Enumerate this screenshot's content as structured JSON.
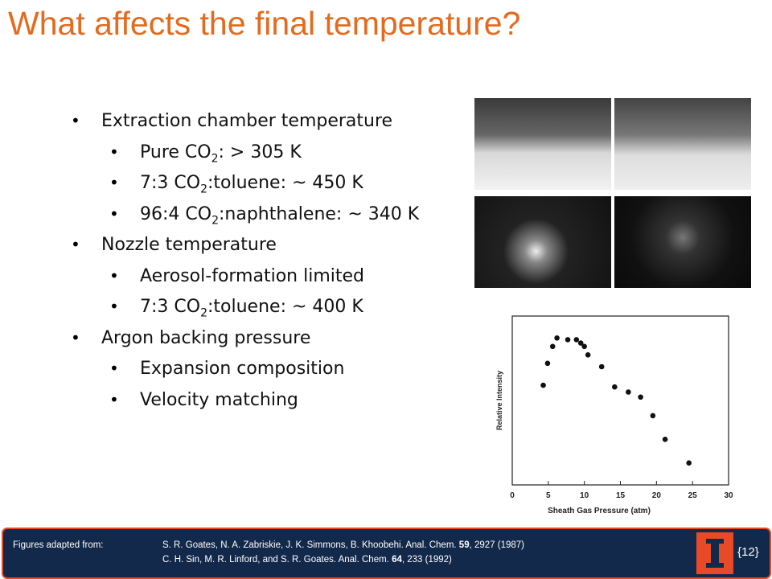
{
  "slide": {
    "title": "What affects the final temperature?",
    "bullets": [
      {
        "text": [
          "Extraction chamber temperature"
        ],
        "items": [
          {
            "text": [
              "Pure CO",
              "2",
              ": > 305 K"
            ]
          },
          {
            "text": [
              "7:3 CO",
              "2",
              ":toluene: ~ 450 K"
            ]
          },
          {
            "text": [
              "96:4 CO",
              "2",
              ":naphthalene: ~ 340 K"
            ]
          }
        ]
      },
      {
        "text": [
          "Nozzle temperature"
        ],
        "items": [
          {
            "text": [
              "Aerosol-formation limited"
            ]
          },
          {
            "text": [
              "7:3 CO",
              "2",
              ":toluene: ~ 400 K"
            ]
          }
        ]
      },
      {
        "text": [
          "Argon backing pressure"
        ],
        "items": [
          {
            "text": [
              "Expansion composition"
            ]
          },
          {
            "text": [
              "Velocity matching"
            ]
          }
        ]
      }
    ],
    "plot": {
      "type": "scatter",
      "xlabel": "Sheath Gas Pressure (atm)",
      "ylabel": "Relative Intensity",
      "x": [
        4.3,
        4.9,
        5.6,
        6.2,
        7.7,
        8.9,
        9.5,
        10.0,
        10.5,
        12.4,
        14.2,
        16.1,
        17.8,
        19.5,
        21.2,
        24.5
      ],
      "y": [
        0.59,
        0.72,
        0.82,
        0.87,
        0.86,
        0.86,
        0.84,
        0.82,
        0.77,
        0.7,
        0.58,
        0.55,
        0.52,
        0.41,
        0.27,
        0.13
      ],
      "xlim": [
        0,
        30
      ],
      "xticks": [
        0,
        5,
        10,
        15,
        20,
        25,
        30
      ],
      "ylim": [
        0,
        1
      ],
      "color": "#111111"
    },
    "footer": {
      "label": "Figures adapted from:",
      "refs": [
        [
          "S. R. Goates, N. A. Zabriskie, J. K. Simmons, B. Khoobehi.  Anal. Chem. ",
          "59",
          ", 2927 (1987)"
        ],
        [
          "C. H. Sin, M. R. Linford, and S. R. Goates.  Anal. Chem. ",
          "64",
          ", 233 (1992)"
        ]
      ],
      "page": "{12}"
    }
  }
}
